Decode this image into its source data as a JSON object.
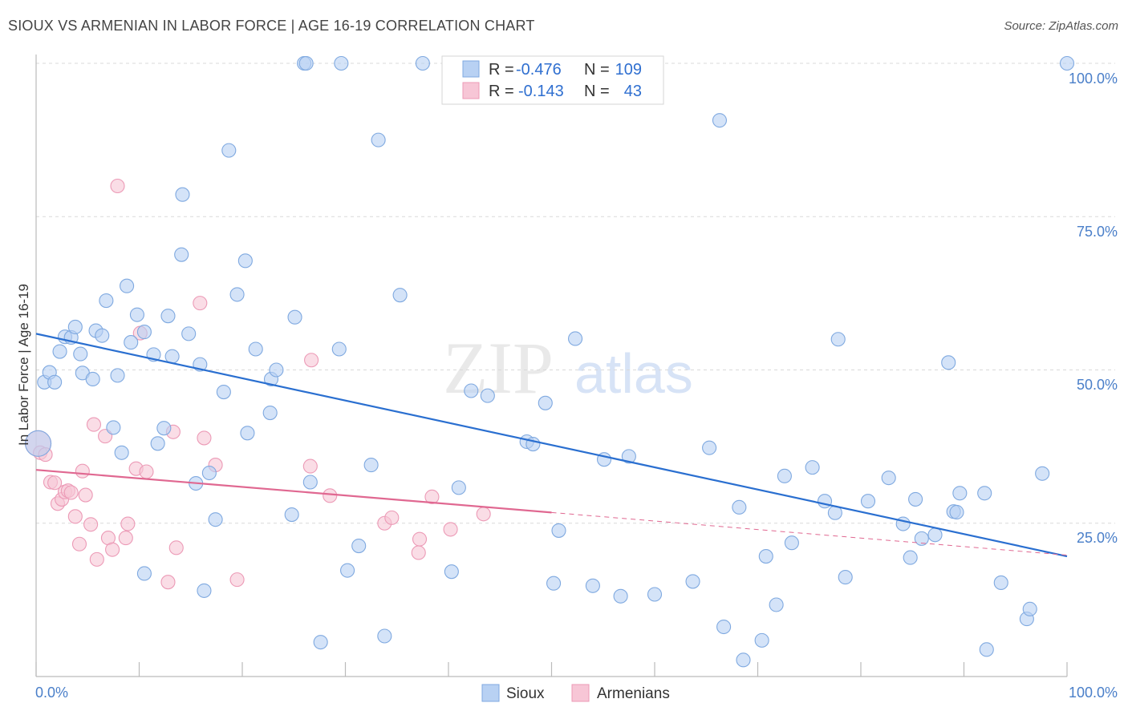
{
  "title": "SIOUX VS ARMENIAN IN LABOR FORCE | AGE 16-19 CORRELATION CHART",
  "source": "Source: ZipAtlas.com",
  "watermark": {
    "zip": "ZIP",
    "atlas": "atlas"
  },
  "colors": {
    "sioux_fill": "#b8d1f3",
    "sioux_stroke": "#7fa9e0",
    "sioux_line": "#2a6fd0",
    "armenian_fill": "#f7c6d6",
    "armenian_stroke": "#ec9ab6",
    "armenian_line": "#e06891",
    "grid": "#d9d9d9",
    "tick_text": "#4a7fc9"
  },
  "legend": {
    "rows": [
      {
        "r_label": "R =",
        "r_value": "-0.476",
        "n_label": "N =",
        "n_value": "109"
      },
      {
        "r_label": "R =",
        "r_value": "-0.143",
        "n_label": "N =",
        "n_value": "43"
      }
    ]
  },
  "chart_data": {
    "type": "scatter",
    "title": "SIOUX VS ARMENIAN IN LABOR FORCE | AGE 16-19 CORRELATION CHART",
    "xlabel": "",
    "ylabel": "In Labor Force | Age 16-19",
    "xlim": [
      0,
      100
    ],
    "ylim": [
      0,
      100
    ],
    "x_tick_labels": [
      "0.0%",
      "100.0%"
    ],
    "y_tick_labels": [
      "25.0%",
      "50.0%",
      "75.0%",
      "100.0%"
    ],
    "y_ticks": [
      25,
      50,
      75,
      100
    ],
    "grid": true,
    "series": [
      {
        "name": "Sioux",
        "trend": {
          "x": [
            0,
            100
          ],
          "y": [
            55.9,
            19.6
          ],
          "dashed_from": null
        },
        "points": [
          [
            0.2,
            38
          ],
          [
            0.8,
            48
          ],
          [
            1.3,
            49.6
          ],
          [
            1.8,
            48
          ],
          [
            2.3,
            53
          ],
          [
            2.8,
            55.4
          ],
          [
            3.4,
            55.3
          ],
          [
            3.8,
            57
          ],
          [
            4.3,
            52.6
          ],
          [
            4.5,
            49.5
          ],
          [
            5.5,
            48.5
          ],
          [
            5.8,
            56.4
          ],
          [
            6.4,
            55.6
          ],
          [
            6.8,
            61.3
          ],
          [
            7.5,
            40.6
          ],
          [
            7.9,
            49.1
          ],
          [
            8.3,
            36.5
          ],
          [
            8.8,
            63.7
          ],
          [
            9.2,
            54.5
          ],
          [
            9.8,
            59
          ],
          [
            10.5,
            56.2
          ],
          [
            10.5,
            16.8
          ],
          [
            11.4,
            52.5
          ],
          [
            11.8,
            38
          ],
          [
            12.4,
            40.5
          ],
          [
            12.8,
            58.8
          ],
          [
            13.2,
            52.2
          ],
          [
            14.1,
            68.8
          ],
          [
            14.2,
            78.6
          ],
          [
            14.8,
            55.9
          ],
          [
            15.5,
            31.5
          ],
          [
            15.9,
            50.9
          ],
          [
            16.3,
            14
          ],
          [
            16.8,
            33.2
          ],
          [
            17.4,
            25.6
          ],
          [
            18.2,
            46.4
          ],
          [
            18.7,
            85.8
          ],
          [
            19.5,
            62.3
          ],
          [
            20.3,
            67.8
          ],
          [
            20.5,
            39.7
          ],
          [
            21.3,
            53.4
          ],
          [
            22.7,
            43
          ],
          [
            22.8,
            48.5
          ],
          [
            23.3,
            50
          ],
          [
            24.8,
            26.4
          ],
          [
            25.1,
            58.6
          ],
          [
            26,
            100
          ],
          [
            26.2,
            100
          ],
          [
            26.6,
            31.7
          ],
          [
            27.6,
            5.6
          ],
          [
            29.4,
            53.4
          ],
          [
            29.6,
            100
          ],
          [
            30.2,
            17.3
          ],
          [
            31.3,
            21.3
          ],
          [
            32.5,
            34.5
          ],
          [
            33.2,
            87.5
          ],
          [
            33.8,
            6.6
          ],
          [
            35.3,
            62.2
          ],
          [
            37.5,
            100
          ],
          [
            40.3,
            17.1
          ],
          [
            41,
            30.8
          ],
          [
            42.2,
            46.6
          ],
          [
            43.8,
            45.8
          ],
          [
            45,
            100
          ],
          [
            47.6,
            38.3
          ],
          [
            48.2,
            37.9
          ],
          [
            49.4,
            44.6
          ],
          [
            50.2,
            15.2
          ],
          [
            50.7,
            23.8
          ],
          [
            52.3,
            55.1
          ],
          [
            54,
            14.8
          ],
          [
            55.1,
            35.4
          ],
          [
            56.7,
            13.1
          ],
          [
            57.5,
            35.9
          ],
          [
            60,
            13.4
          ],
          [
            63.7,
            15.5
          ],
          [
            65.3,
            37.3
          ],
          [
            66.3,
            90.7
          ],
          [
            66.7,
            8.1
          ],
          [
            68.2,
            27.6
          ],
          [
            68.6,
            2.7
          ],
          [
            70.4,
            5.9
          ],
          [
            70.8,
            19.6
          ],
          [
            71.8,
            11.7
          ],
          [
            72.6,
            32.7
          ],
          [
            73.3,
            21.8
          ],
          [
            75.3,
            34.1
          ],
          [
            76.5,
            28.6
          ],
          [
            77.5,
            26.7
          ],
          [
            77.8,
            55
          ],
          [
            78.5,
            16.2
          ],
          [
            80.7,
            28.6
          ],
          [
            82.7,
            32.4
          ],
          [
            84.1,
            24.9
          ],
          [
            84.8,
            19.4
          ],
          [
            85.3,
            28.9
          ],
          [
            85.9,
            22.5
          ],
          [
            87.2,
            23.1
          ],
          [
            88.5,
            51.2
          ],
          [
            89,
            26.9
          ],
          [
            89.3,
            26.8
          ],
          [
            89.6,
            29.9
          ],
          [
            92,
            29.9
          ],
          [
            92.2,
            4.4
          ],
          [
            93.6,
            15.3
          ],
          [
            96.1,
            9.4
          ],
          [
            96.4,
            11
          ],
          [
            97.6,
            33.1
          ],
          [
            100,
            100
          ]
        ]
      },
      {
        "name": "Armenians",
        "trend": {
          "x": [
            0,
            100
          ],
          "y": [
            33.7,
            19.8
          ],
          "dashed_from": 50
        },
        "points": [
          [
            0.2,
            38
          ],
          [
            0.4,
            36.5
          ],
          [
            0.9,
            36.2
          ],
          [
            1.4,
            31.7
          ],
          [
            1.8,
            31.6
          ],
          [
            2.1,
            28.2
          ],
          [
            2.5,
            28.9
          ],
          [
            2.8,
            30.1
          ],
          [
            3.1,
            30.3
          ],
          [
            3.4,
            30
          ],
          [
            3.8,
            26.1
          ],
          [
            4.2,
            21.6
          ],
          [
            4.5,
            33.5
          ],
          [
            4.8,
            29.6
          ],
          [
            5.3,
            24.8
          ],
          [
            5.6,
            41.1
          ],
          [
            5.9,
            19.1
          ],
          [
            6.7,
            39.2
          ],
          [
            7,
            22.6
          ],
          [
            7.4,
            20.7
          ],
          [
            7.9,
            80
          ],
          [
            8.7,
            22.6
          ],
          [
            8.9,
            24.9
          ],
          [
            9.7,
            33.9
          ],
          [
            10.1,
            56
          ],
          [
            10.7,
            33.4
          ],
          [
            12.8,
            15.4
          ],
          [
            13.3,
            39.9
          ],
          [
            13.6,
            21
          ],
          [
            15.9,
            60.9
          ],
          [
            16.3,
            38.9
          ],
          [
            17.4,
            34.5
          ],
          [
            19.5,
            15.8
          ],
          [
            26.6,
            34.3
          ],
          [
            26.7,
            51.6
          ],
          [
            28.5,
            29.5
          ],
          [
            33.8,
            25
          ],
          [
            34.5,
            25.9
          ],
          [
            37.1,
            20.2
          ],
          [
            37.2,
            22.4
          ],
          [
            38.4,
            29.3
          ],
          [
            40.2,
            24
          ],
          [
            43.4,
            26.5
          ]
        ]
      }
    ]
  },
  "bottom_legend": {
    "sioux": "Sioux",
    "armenians": "Armenians"
  }
}
